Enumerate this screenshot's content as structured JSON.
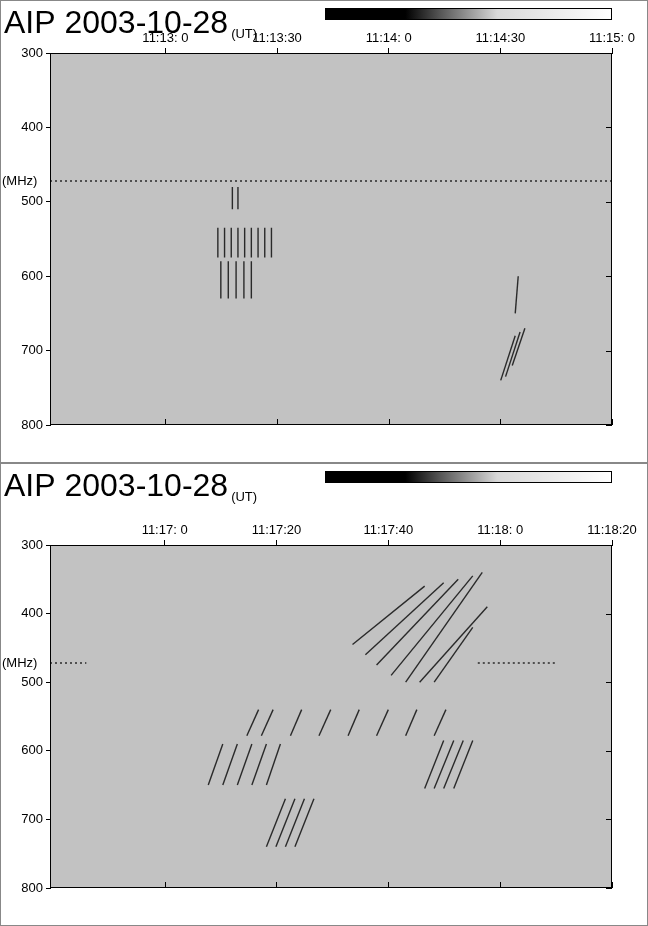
{
  "chart_data": [
    {
      "type": "line",
      "title": "AIP 2003-10-28",
      "x_label": "(UT)",
      "y_label": "(MHz)",
      "color": "#2a2a2a",
      "grid": false,
      "xlim": [
        40349,
        40500
      ],
      "xticks": [
        {
          "value": 40380,
          "label": "11:13: 0"
        },
        {
          "value": 40410,
          "label": "11:13:30"
        },
        {
          "value": 40440,
          "label": "11:14: 0"
        },
        {
          "value": 40470,
          "label": "11:14:30"
        },
        {
          "value": 40500,
          "label": "11:15: 0"
        }
      ],
      "ylim": [
        300,
        800
      ],
      "yticks": [
        300,
        400,
        500,
        600,
        700,
        800
      ],
      "features": [
        {
          "x": [
            40349,
            40500
          ],
          "y": [
            472,
            472
          ],
          "line_style": "dotted"
        },
        {
          "x": [
            40394.1,
            40394.1
          ],
          "y": [
            535,
            575
          ]
        },
        {
          "x": [
            40395.9,
            40395.9
          ],
          "y": [
            535,
            575
          ]
        },
        {
          "x": [
            40397.7,
            40397.7
          ],
          "y": [
            535,
            575
          ]
        },
        {
          "x": [
            40399.5,
            40399.5
          ],
          "y": [
            535,
            575
          ]
        },
        {
          "x": [
            40401.3,
            40401.3
          ],
          "y": [
            535,
            575
          ]
        },
        {
          "x": [
            40403.1,
            40403.1
          ],
          "y": [
            535,
            575
          ]
        },
        {
          "x": [
            40404.9,
            40404.9
          ],
          "y": [
            535,
            575
          ]
        },
        {
          "x": [
            40406.7,
            40406.7
          ],
          "y": [
            535,
            575
          ]
        },
        {
          "x": [
            40408.5,
            40408.5
          ],
          "y": [
            535,
            575
          ]
        },
        {
          "x": [
            40394.9,
            40394.9
          ],
          "y": [
            580,
            630
          ]
        },
        {
          "x": [
            40396.9,
            40396.9
          ],
          "y": [
            580,
            630
          ]
        },
        {
          "x": [
            40399.0,
            40399.0
          ],
          "y": [
            580,
            630
          ]
        },
        {
          "x": [
            40401.1,
            40401.1
          ],
          "y": [
            580,
            630
          ]
        },
        {
          "x": [
            40403.1,
            40403.1
          ],
          "y": [
            580,
            630
          ]
        },
        {
          "x": [
            40398.0,
            40398.0
          ],
          "y": [
            480,
            510
          ]
        },
        {
          "x": [
            40399.5,
            40399.5
          ],
          "y": [
            480,
            510
          ]
        },
        {
          "x": [
            40474.0,
            40470.1
          ],
          "y": [
            680,
            740
          ]
        },
        {
          "x": [
            40475.3,
            40471.4
          ],
          "y": [
            675,
            735
          ]
        },
        {
          "x": [
            40476.6,
            40473.2
          ],
          "y": [
            670,
            720
          ]
        },
        {
          "x": [
            40474.8,
            40474.0
          ],
          "y": [
            600,
            650
          ]
        }
      ]
    },
    {
      "type": "line",
      "title": "AIP 2003-10-28",
      "x_label": "(UT)",
      "y_label": "(MHz)",
      "color": "#2a2a2a",
      "grid": false,
      "xlim": [
        40599.5,
        40700
      ],
      "xticks": [
        {
          "value": 40620,
          "label": "11:17: 0"
        },
        {
          "value": 40640,
          "label": "11:17:20"
        },
        {
          "value": 40660,
          "label": "11:17:40"
        },
        {
          "value": 40680,
          "label": "11:18: 0"
        },
        {
          "value": 40700,
          "label": "11:18:20"
        }
      ],
      "ylim": [
        300,
        800
      ],
      "yticks": [
        300,
        400,
        500,
        600,
        700,
        800
      ],
      "features": [
        {
          "x": [
            40599.5,
            40606
          ],
          "y": [
            472,
            472
          ],
          "line_style": "dotted"
        },
        {
          "x": [
            40676,
            40690
          ],
          "y": [
            472,
            472
          ],
          "line_style": "dotted"
        },
        {
          "x": [
            40653.6,
            40666.5
          ],
          "y": [
            445,
            360
          ]
        },
        {
          "x": [
            40655.9,
            40669.9
          ],
          "y": [
            460,
            355
          ]
        },
        {
          "x": [
            40657.9,
            40672.5
          ],
          "y": [
            475,
            350
          ]
        },
        {
          "x": [
            40660.5,
            40675.1
          ],
          "y": [
            490,
            345
          ]
        },
        {
          "x": [
            40663.1,
            40676.8
          ],
          "y": [
            500,
            340
          ]
        },
        {
          "x": [
            40665.6,
            40677.7
          ],
          "y": [
            500,
            390
          ]
        },
        {
          "x": [
            40668.2,
            40675.1
          ],
          "y": [
            500,
            420
          ]
        },
        {
          "x": [
            40634.7,
            40636.8
          ],
          "y": [
            578,
            540
          ]
        },
        {
          "x": [
            40637.3,
            40639.4
          ],
          "y": [
            578,
            540
          ]
        },
        {
          "x": [
            40642.5,
            40644.5
          ],
          "y": [
            578,
            540
          ]
        },
        {
          "x": [
            40647.6,
            40649.7
          ],
          "y": [
            578,
            540
          ]
        },
        {
          "x": [
            40652.8,
            40654.8
          ],
          "y": [
            578,
            540
          ]
        },
        {
          "x": [
            40657.9,
            40660.0
          ],
          "y": [
            578,
            540
          ]
        },
        {
          "x": [
            40663.1,
            40665.1
          ],
          "y": [
            578,
            540
          ]
        },
        {
          "x": [
            40668.2,
            40670.3
          ],
          "y": [
            578,
            540
          ]
        },
        {
          "x": [
            40627.8,
            40630.4
          ],
          "y": [
            650,
            590
          ]
        },
        {
          "x": [
            40630.4,
            40633.0
          ],
          "y": [
            650,
            590
          ]
        },
        {
          "x": [
            40633.0,
            40635.6
          ],
          "y": [
            650,
            590
          ]
        },
        {
          "x": [
            40635.6,
            40638.2
          ],
          "y": [
            650,
            590
          ]
        },
        {
          "x": [
            40638.2,
            40640.7
          ],
          "y": [
            650,
            590
          ]
        },
        {
          "x": [
            40666.5,
            40669.9
          ],
          "y": [
            655,
            585
          ]
        },
        {
          "x": [
            40668.2,
            40671.7
          ],
          "y": [
            655,
            585
          ]
        },
        {
          "x": [
            40669.9,
            40673.4
          ],
          "y": [
            655,
            585
          ]
        },
        {
          "x": [
            40671.7,
            40675.1
          ],
          "y": [
            655,
            585
          ]
        },
        {
          "x": [
            40638.2,
            40641.6
          ],
          "y": [
            740,
            670
          ]
        },
        {
          "x": [
            40639.9,
            40643.3
          ],
          "y": [
            740,
            670
          ]
        },
        {
          "x": [
            40641.6,
            40645.0
          ],
          "y": [
            740,
            670
          ]
        },
        {
          "x": [
            40643.3,
            40646.7
          ],
          "y": [
            740,
            670
          ]
        }
      ]
    }
  ]
}
